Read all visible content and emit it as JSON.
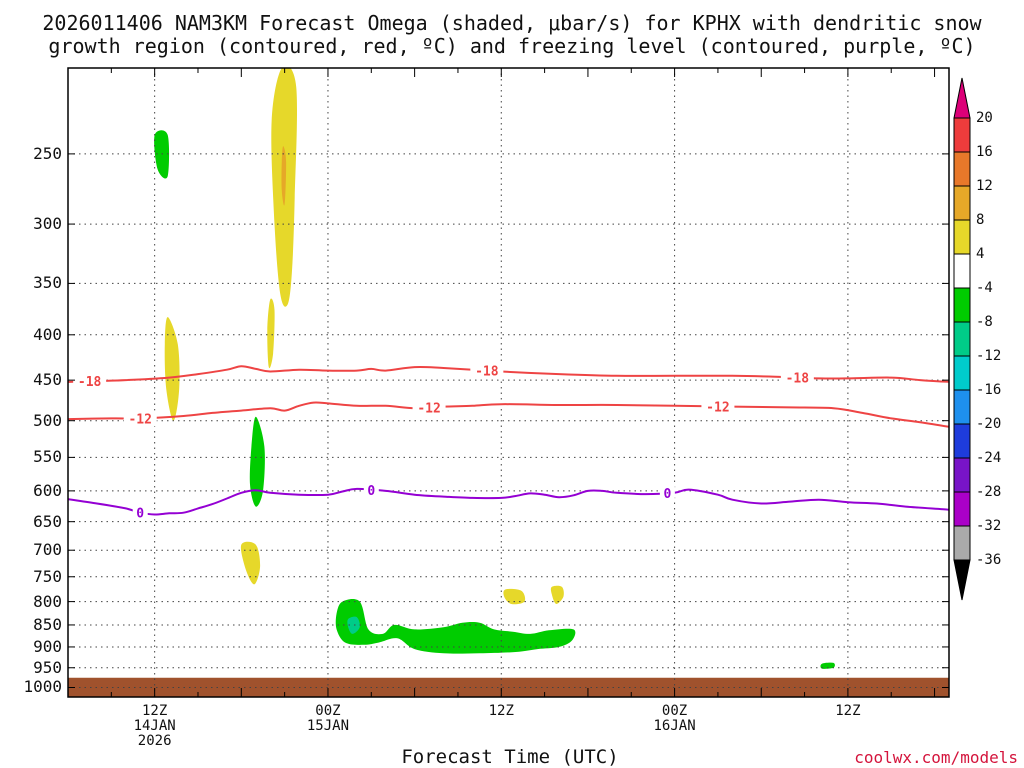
{
  "title": {
    "line1": "2026011406 NAM3KM Forecast Omega (shaded, μbar/s) for KPHX with dendritic snow",
    "line2": "growth region (contoured, red, ºC) and freezing level (contoured, purple, ºC)"
  },
  "credit": "coolwx.com/models",
  "chart_data": {
    "type": "heatmap",
    "title": "2026011406 NAM3KM Forecast Omega (shaded, μbar/s) for KPHX with dendritic snow growth region (contoured, red, ºC) and freezing level (contoured, purple, ºC)",
    "xlabel": "Forecast Time (UTC)",
    "ylabel": "",
    "x_units": "forecast hour from 2026-01-14 06Z",
    "xlim": [
      0,
      61
    ],
    "ylim": [
      1025,
      200
    ],
    "y_scale": "log-pressure",
    "grid": true,
    "y_ticks": [
      250,
      300,
      350,
      400,
      450,
      500,
      550,
      600,
      650,
      700,
      750,
      800,
      850,
      900,
      950,
      1000
    ],
    "x_ticks": [
      {
        "hour": 6,
        "label": "12Z",
        "sub1": "14JAN",
        "sub2": "2026"
      },
      {
        "hour": 18,
        "label": "00Z",
        "sub1": "15JAN",
        "sub2": ""
      },
      {
        "hour": 30,
        "label": "12Z",
        "sub1": "",
        "sub2": ""
      },
      {
        "hour": 42,
        "label": "00Z",
        "sub1": "16JAN",
        "sub2": ""
      },
      {
        "hour": 54,
        "label": "12Z",
        "sub1": "",
        "sub2": ""
      }
    ],
    "colorbar": {
      "levels": [
        20,
        16,
        12,
        8,
        4,
        -4,
        -8,
        -12,
        -16,
        -20,
        -24,
        -28,
        -32,
        -36
      ],
      "colors": [
        "#ee3c3c",
        "#e8782a",
        "#e6a828",
        "#e6d82a",
        "#ffffff",
        "#00cc00",
        "#00cc88",
        "#00cccc",
        "#1e90ee",
        "#1e3cdc",
        "#7814c8",
        "#aa00c8",
        "#aaaaaa"
      ],
      "top_color": "#dc0078",
      "bottom_color": "#000000"
    },
    "omega_areas": [
      {
        "value": 6,
        "points": [
          [
            14.8,
            200
          ],
          [
            15.8,
            210
          ],
          [
            15.7,
            280
          ],
          [
            15.5,
            340
          ],
          [
            15.2,
            370
          ],
          [
            14.7,
            360
          ],
          [
            14.3,
            300
          ],
          [
            14.1,
            230
          ]
        ]
      },
      {
        "value": 10,
        "points": [
          [
            14.9,
            245
          ],
          [
            15.1,
            255
          ],
          [
            15.0,
            285
          ],
          [
            14.8,
            275
          ],
          [
            14.8,
            255
          ]
        ]
      },
      {
        "value": -6,
        "points": [
          [
            6.0,
            238
          ],
          [
            6.9,
            238
          ],
          [
            6.9,
            265
          ],
          [
            6.2,
            260
          ]
        ]
      },
      {
        "value": 6,
        "points": [
          [
            6.9,
            382
          ],
          [
            7.6,
            410
          ],
          [
            7.7,
            460
          ],
          [
            7.3,
            500
          ],
          [
            6.8,
            460
          ],
          [
            6.7,
            410
          ]
        ]
      },
      {
        "value": 6,
        "points": [
          [
            14.0,
            365
          ],
          [
            14.3,
            375
          ],
          [
            14.2,
            420
          ],
          [
            13.9,
            435
          ],
          [
            13.8,
            395
          ]
        ]
      },
      {
        "value": -6,
        "points": [
          [
            13.0,
            495
          ],
          [
            13.6,
            535
          ],
          [
            13.5,
            600
          ],
          [
            13.0,
            625
          ],
          [
            12.6,
            590
          ],
          [
            12.7,
            535
          ]
        ]
      },
      {
        "value": 6,
        "points": [
          [
            12.0,
            690
          ],
          [
            13.0,
            690
          ],
          [
            13.3,
            730
          ],
          [
            12.9,
            765
          ],
          [
            12.3,
            735
          ]
        ]
      },
      {
        "value": -6,
        "points": [
          [
            19.0,
            800
          ],
          [
            20.2,
            800
          ],
          [
            20.8,
            860
          ],
          [
            21.8,
            870
          ],
          [
            22.6,
            850
          ],
          [
            24.0,
            860
          ],
          [
            26.0,
            855
          ],
          [
            27.3,
            845
          ],
          [
            28.5,
            845
          ],
          [
            29.5,
            860
          ],
          [
            30.8,
            865
          ],
          [
            32.0,
            870
          ],
          [
            33.3,
            862
          ],
          [
            35.0,
            860
          ],
          [
            34.9,
            885
          ],
          [
            34.0,
            900
          ],
          [
            32.5,
            905
          ],
          [
            31.0,
            912
          ],
          [
            28.5,
            915
          ],
          [
            26.0,
            915
          ],
          [
            24.0,
            905
          ],
          [
            22.8,
            880
          ],
          [
            21.5,
            890
          ],
          [
            20.5,
            895
          ],
          [
            19.2,
            890
          ],
          [
            18.6,
            860
          ],
          [
            18.6,
            825
          ]
        ]
      },
      {
        "value": -10,
        "points": [
          [
            19.4,
            837
          ],
          [
            20.0,
            833
          ],
          [
            20.2,
            855
          ],
          [
            19.7,
            870
          ],
          [
            19.4,
            855
          ]
        ]
      },
      {
        "value": 6,
        "points": [
          [
            30.3,
            775
          ],
          [
            31.4,
            778
          ],
          [
            31.6,
            800
          ],
          [
            30.7,
            805
          ],
          [
            30.2,
            790
          ]
        ]
      },
      {
        "value": 6,
        "points": [
          [
            33.5,
            770
          ],
          [
            34.2,
            770
          ],
          [
            34.3,
            790
          ],
          [
            33.8,
            805
          ],
          [
            33.5,
            785
          ]
        ]
      },
      {
        "value": -6,
        "points": [
          [
            52.2,
            940
          ],
          [
            53.0,
            938
          ],
          [
            53.0,
            950
          ],
          [
            52.2,
            952
          ]
        ]
      }
    ],
    "contours": [
      {
        "name": "-18",
        "color": "#ee4444",
        "label": "-18",
        "label_at": [
          1.5,
          29.0,
          50.5
        ],
        "x": [
          0,
          4,
          7,
          9,
          11,
          12,
          13,
          14,
          16,
          18,
          20,
          21,
          22,
          24,
          26,
          30,
          34,
          38,
          42,
          46,
          49,
          52,
          54,
          57,
          59,
          61
        ],
        "p": [
          452,
          450,
          447,
          443,
          438,
          434,
          437,
          440,
          438,
          439,
          439,
          437,
          439,
          435,
          436,
          440,
          443,
          445,
          445,
          445,
          446,
          448,
          448,
          447,
          450,
          452
        ]
      },
      {
        "name": "-12",
        "color": "#ee4444",
        "label": "-12",
        "label_at": [
          5.0,
          25.0,
          45.0
        ],
        "x": [
          0,
          3,
          5,
          8,
          10,
          12,
          14,
          15,
          16,
          17,
          18,
          20,
          22,
          24,
          26,
          28,
          30,
          34,
          38,
          42,
          46,
          50,
          53,
          55,
          57,
          59,
          61
        ],
        "p": [
          498,
          497,
          497,
          494,
          490,
          487,
          484,
          487,
          481,
          477,
          478,
          481,
          481,
          484,
          482,
          481,
          479,
          480,
          480,
          481,
          482,
          483,
          484,
          490,
          497,
          502,
          508
        ]
      },
      {
        "name": "0",
        "color": "#9400d3",
        "label": "0",
        "label_at": [
          5.0,
          21.0,
          41.5
        ],
        "x": [
          0,
          2,
          4,
          5,
          6,
          7,
          8,
          9,
          10,
          11,
          12,
          13,
          14,
          16,
          18,
          19,
          20,
          22,
          24,
          26,
          28,
          30,
          31,
          32,
          33,
          34,
          35,
          36,
          37,
          38,
          40,
          42,
          43,
          45,
          46,
          48,
          50,
          52,
          54,
          56,
          58,
          61
        ],
        "p": [
          613,
          620,
          628,
          635,
          638,
          636,
          635,
          628,
          621,
          612,
          603,
          599,
          603,
          606,
          606,
          601,
          597,
          600,
          606,
          609,
          611,
          611,
          608,
          604,
          606,
          610,
          607,
          600,
          600,
          603,
          605,
          603,
          598,
          606,
          614,
          620,
          617,
          614,
          618,
          620,
          625,
          630
        ]
      }
    ],
    "ground": {
      "pressure_top": 975,
      "color": "#a0522d"
    }
  }
}
